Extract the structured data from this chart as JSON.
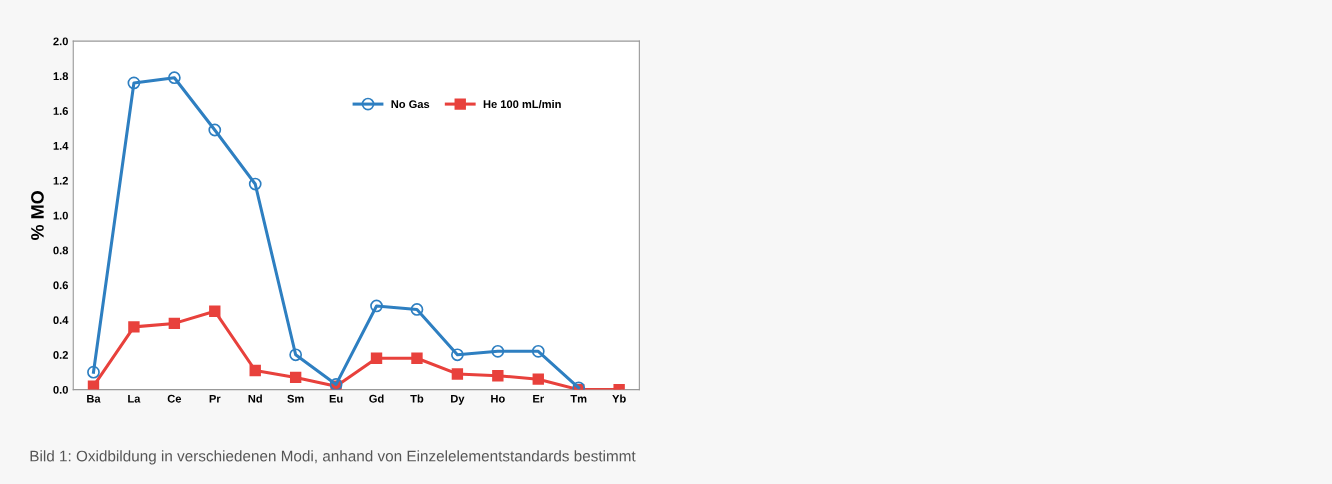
{
  "chart_data": {
    "type": "line",
    "ylabel": "% MO",
    "categories": [
      "Ba",
      "La",
      "Ce",
      "Pr",
      "Nd",
      "Sm",
      "Eu",
      "Gd",
      "Tb",
      "Dy",
      "Ho",
      "Er",
      "Tm",
      "Yb"
    ],
    "series": [
      {
        "name": "No Gas",
        "color": "#2e7fc1",
        "marker": "circle",
        "values": [
          0.1,
          1.76,
          1.79,
          1.49,
          1.18,
          0.2,
          0.03,
          0.48,
          0.46,
          0.2,
          0.22,
          0.22,
          0.01,
          null
        ]
      },
      {
        "name": "He 100 mL/min",
        "color": "#e8413c",
        "marker": "square",
        "values": [
          0.02,
          0.36,
          0.38,
          0.45,
          0.11,
          0.07,
          0.02,
          0.18,
          0.18,
          0.09,
          0.08,
          0.06,
          0.0,
          0.0
        ]
      }
    ],
    "ylim": [
      0,
      2.0
    ],
    "yticks": [
      {
        "value": 0,
        "label": "0.0"
      },
      {
        "value": 0.2,
        "label": "0.2"
      },
      {
        "value": 0.4,
        "label": "0.4"
      },
      {
        "value": 0.6,
        "label": "0.6"
      },
      {
        "value": 0.8,
        "label": "0.8"
      },
      {
        "value": 1.0,
        "label": "1.0"
      },
      {
        "value": 1.2,
        "label": "1.2"
      },
      {
        "value": 1.4,
        "label": "1.4"
      },
      {
        "value": 1.6,
        "label": "1.6"
      },
      {
        "value": 1.8,
        "label": "1.8"
      },
      {
        "value": 2.0,
        "label": "2.0"
      }
    ],
    "grid": false,
    "legend": "top right",
    "annotations": [
      "Bild 1: Oxidbildung in verschiedenen Modi, anhand von Einzelelementstandards bestimmt"
    ]
  }
}
